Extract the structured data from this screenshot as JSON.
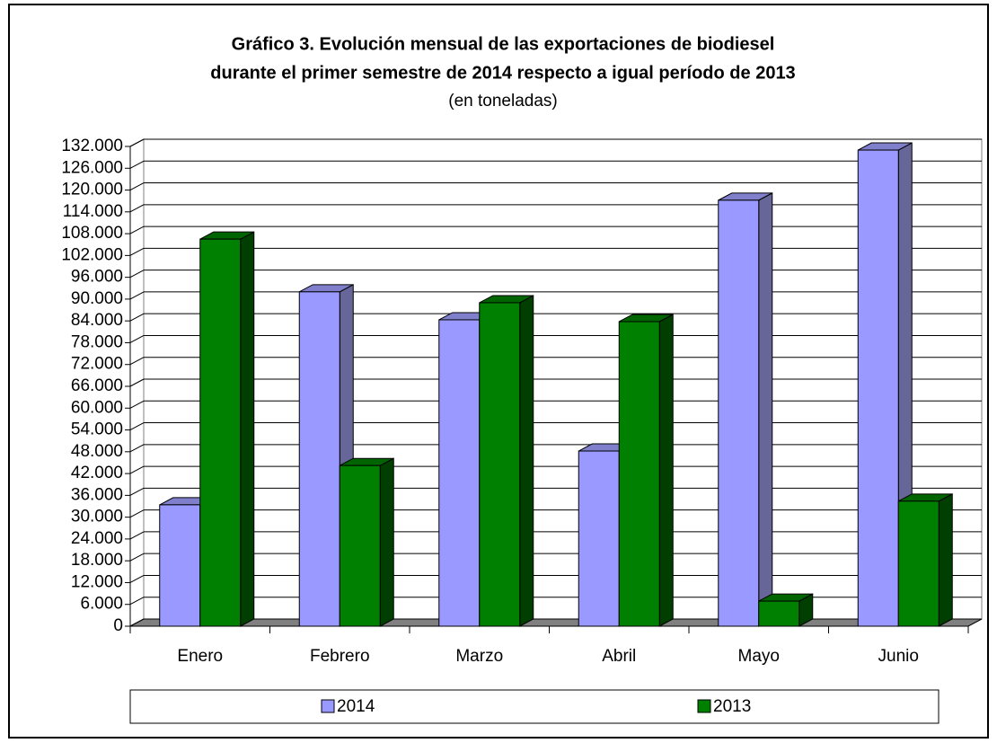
{
  "chart_data": {
    "type": "bar3d",
    "title": "Gráfico 3. Evolución mensual de las exportaciones de biodiesel",
    "title_line2": "durante el primer semestre de 2014 respecto a igual período de 2013",
    "subtitle": "(en toneladas)",
    "categories": [
      "Enero",
      "Febrero",
      "Marzo",
      "Abril",
      "Mayo",
      "Junio"
    ],
    "series": [
      {
        "name": "2014",
        "color": "#9999ff",
        "values": [
          33400,
          92000,
          84300,
          48200,
          117200,
          131000
        ]
      },
      {
        "name": "2013",
        "color": "#008000",
        "values": [
          106500,
          44200,
          89000,
          83800,
          6900,
          34400
        ]
      }
    ],
    "ylim": [
      0,
      132000
    ],
    "yticks": [
      0,
      {
        "value": 6000,
        "label": "6.000"
      },
      {
        "value": 12000,
        "label": "12.000"
      },
      {
        "value": 18000,
        "label": "18.000"
      },
      {
        "value": 24000,
        "label": "24.000"
      },
      {
        "value": 30000,
        "label": "30.000"
      },
      {
        "value": 36000,
        "label": "36.000"
      },
      {
        "value": 42000,
        "label": "42.000"
      },
      {
        "value": 48000,
        "label": "48.000"
      },
      {
        "value": 54000,
        "label": "54.000"
      },
      {
        "value": 60000,
        "label": "60.000"
      },
      {
        "value": 66000,
        "label": "66.000"
      },
      {
        "value": 72000,
        "label": "72.000"
      },
      {
        "value": 78000,
        "label": "78.000"
      },
      {
        "value": 84000,
        "label": "84.000"
      },
      {
        "value": 90000,
        "label": "90.000"
      },
      {
        "value": 96000,
        "label": "96.000"
      },
      {
        "value": 102000,
        "label": "102.000"
      },
      {
        "value": 108000,
        "label": "108.000"
      },
      {
        "value": 114000,
        "label": "114.000"
      },
      {
        "value": 120000,
        "label": "120.000"
      },
      {
        "value": 126000,
        "label": "126.000"
      },
      {
        "value": 132000,
        "label": "132.000"
      }
    ],
    "grid": true,
    "legend": "bottom"
  }
}
